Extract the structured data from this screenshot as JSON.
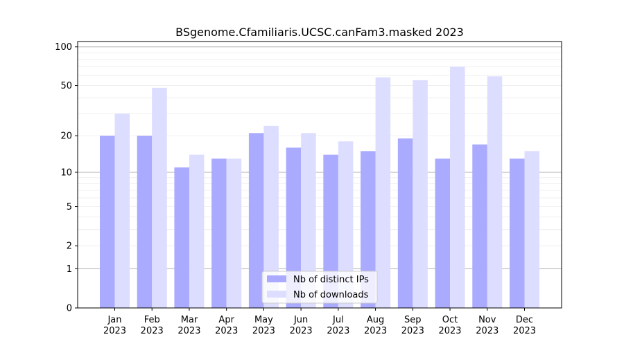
{
  "chart_data": {
    "type": "bar",
    "title": "BSgenome.Cfamiliaris.UCSC.canFam3.masked 2023",
    "xlabel": "",
    "ylabel": "",
    "yscale": "log(1+y)",
    "ylim": [
      0,
      110
    ],
    "yticks": [
      {
        "value": 0,
        "label": "0"
      },
      {
        "value": 1,
        "label": "1"
      },
      {
        "value": 2,
        "label": "2"
      },
      {
        "value": 5,
        "label": "5"
      },
      {
        "value": 10,
        "label": "10"
      },
      {
        "value": 20,
        "label": "20"
      },
      {
        "value": 50,
        "label": "50"
      },
      {
        "value": 100,
        "label": "100"
      }
    ],
    "categories": [
      {
        "month": "Jan",
        "year": "2023"
      },
      {
        "month": "Feb",
        "year": "2023"
      },
      {
        "month": "Mar",
        "year": "2023"
      },
      {
        "month": "Apr",
        "year": "2023"
      },
      {
        "month": "May",
        "year": "2023"
      },
      {
        "month": "Jun",
        "year": "2023"
      },
      {
        "month": "Jul",
        "year": "2023"
      },
      {
        "month": "Aug",
        "year": "2023"
      },
      {
        "month": "Sep",
        "year": "2023"
      },
      {
        "month": "Oct",
        "year": "2023"
      },
      {
        "month": "Nov",
        "year": "2023"
      },
      {
        "month": "Dec",
        "year": "2023"
      }
    ],
    "series": [
      {
        "name": "Nb of distinct IPs",
        "color": "#aaaaff",
        "values": [
          20,
          20,
          11,
          13,
          21,
          16,
          14,
          15,
          19,
          13,
          17,
          13
        ]
      },
      {
        "name": "Nb of downloads",
        "color": "#ddddff",
        "values": [
          30,
          48,
          14,
          13,
          24,
          21,
          18,
          58,
          55,
          70,
          59,
          15
        ]
      }
    ],
    "legend_position": "lower-center",
    "grid": "horizontal, log scale"
  }
}
